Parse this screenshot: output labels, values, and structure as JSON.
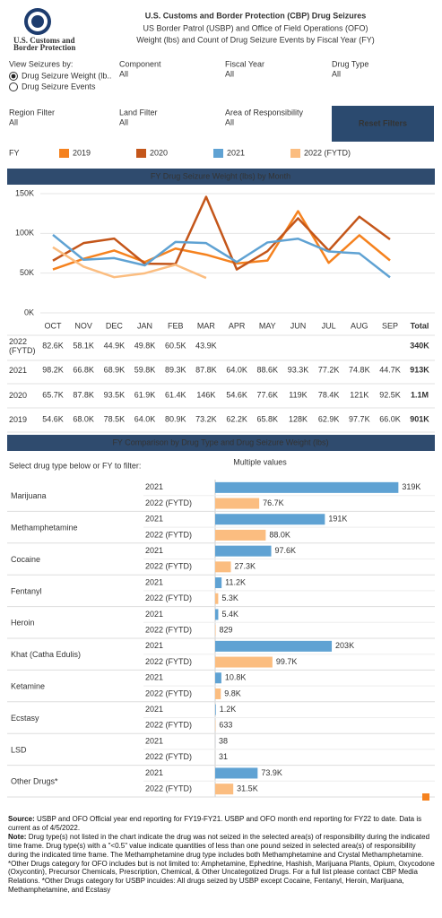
{
  "header": {
    "logo_lines": [
      "U.S. Customs and",
      "Border Protection"
    ],
    "title": "U.S. Customs and Border Protection (CBP) Drug Seizures",
    "subtitle1": "US Border Patrol (USBP) and Office of Field Operations (OFO)",
    "subtitle2": "Weight (lbs) and Count of Drug Seizure Events by Fiscal Year (FY)"
  },
  "filters": {
    "view_label": "View Seizures by:",
    "view_options": [
      "Drug Seizure Weight (lb..",
      "Drug Seizure Events"
    ],
    "fields": [
      {
        "label": "Component",
        "value": "All"
      },
      {
        "label": "Fiscal Year",
        "value": "All"
      },
      {
        "label": "Drug Type",
        "value": "All"
      },
      {
        "label": "Region Filter",
        "value": "All"
      },
      {
        "label": "Land Filter",
        "value": "All"
      },
      {
        "label": "Area of Responsibility",
        "value": "All"
      }
    ],
    "reset": "Reset Filters"
  },
  "legend_title": "FY",
  "chart_data": [
    {
      "type": "line",
      "title": "FY Drug Seizure Weight (lbs) by Month",
      "categories": [
        "OCT",
        "NOV",
        "DEC",
        "JAN",
        "FEB",
        "MAR",
        "APR",
        "MAY",
        "JUN",
        "JUL",
        "AUG",
        "SEP"
      ],
      "ylim": [
        0,
        150000
      ],
      "yticks": [
        {
          "value": 0,
          "label": "0K"
        },
        {
          "value": 50000,
          "label": "50K"
        },
        {
          "value": 100000,
          "label": "100K"
        },
        {
          "value": 150000,
          "label": "150K"
        }
      ],
      "grid": true,
      "total_header": "Total",
      "series": [
        {
          "name": "2019",
          "color": "#f5821f",
          "values": [
            54600,
            68000,
            78500,
            64000,
            80900,
            73200,
            62200,
            65800,
            128000,
            62900,
            97700,
            66000
          ],
          "value_labels": [
            "54.6K",
            "68.0K",
            "78.5K",
            "64.0K",
            "80.9K",
            "73.2K",
            "62.2K",
            "65.8K",
            "128K",
            "62.9K",
            "97.7K",
            "66.0K"
          ],
          "total": "901K"
        },
        {
          "name": "2020",
          "color": "#c4561a",
          "values": [
            65700,
            87800,
            93500,
            61900,
            61400,
            146000,
            54600,
            77600,
            119000,
            78400,
            121000,
            92500
          ],
          "value_labels": [
            "65.7K",
            "87.8K",
            "93.5K",
            "61.9K",
            "61.4K",
            "146K",
            "54.6K",
            "77.6K",
            "119K",
            "78.4K",
            "121K",
            "92.5K"
          ],
          "total": "1.1M"
        },
        {
          "name": "2021",
          "color": "#5fa2d3",
          "values": [
            98200,
            66800,
            68900,
            59800,
            89300,
            87800,
            64000,
            88600,
            93300,
            77200,
            74800,
            44700
          ],
          "value_labels": [
            "98.2K",
            "66.8K",
            "68.9K",
            "59.8K",
            "89.3K",
            "87.8K",
            "64.0K",
            "88.6K",
            "93.3K",
            "77.2K",
            "74.8K",
            "44.7K"
          ],
          "total": "913K"
        },
        {
          "name": "2022 (FYTD)",
          "color": "#fbbd80",
          "values": [
            82600,
            58100,
            44900,
            49800,
            60500,
            43900,
            null,
            null,
            null,
            null,
            null,
            null
          ],
          "value_labels": [
            "82.6K",
            "58.1K",
            "44.9K",
            "49.8K",
            "60.5K",
            "43.9K",
            null,
            null,
            null,
            null,
            null,
            null
          ],
          "total": "340K"
        }
      ]
    },
    {
      "type": "bar",
      "orientation": "horizontal",
      "title": "FY Comparison by Drug Type and Drug Seizure Weight (lbs)",
      "instruction": "Select drug type below or FY to filter:",
      "filter_value": "Multiple values",
      "categories": [
        "Marijuana",
        "Methamphetamine",
        "Cocaine",
        "Fentanyl",
        "Heroin",
        "Khat (Catha Edulis)",
        "Ketamine",
        "Ecstasy",
        "LSD",
        "Other Drugs*"
      ],
      "xlim": [
        0,
        320000
      ],
      "series": [
        {
          "name": "2021",
          "color": "#5fa2d3",
          "values": [
            319000,
            191000,
            97600,
            11200,
            5400,
            203000,
            10800,
            1200,
            38,
            73900
          ],
          "value_labels": [
            "319K",
            "191K",
            "97.6K",
            "11.2K",
            "5.4K",
            "203K",
            "10.8K",
            "1.2K",
            "38",
            "73.9K"
          ]
        },
        {
          "name": "2022 (FYTD)",
          "color": "#fbbd80",
          "values": [
            76700,
            88000,
            27300,
            5300,
            829,
            99700,
            9800,
            633,
            31,
            31500
          ],
          "value_labels": [
            "76.7K",
            "88.0K",
            "27.3K",
            "5.3K",
            "829",
            "99.7K",
            "9.8K",
            "633",
            "31",
            "31.5K"
          ]
        }
      ]
    }
  ],
  "footer": {
    "source_label": "Source:",
    "source": "USBP and OFO Official year end reporting for FY19-FY21. USBP and OFO month end reporting for FY22 to date. Data is current as of 4/5/2022.",
    "note_label": "Note:",
    "note": "Drug type(s) not listed in the chart indicate the drug was not seized in the selected area(s) of responsibility during the indicated time frame. Drug type(s) with a \"<0.5\" value indicate quantities of less than one pound seized in selected area(s) of responsibility during the indicated time frame. The Methamphetamine drug type includes both Methamphetamine and Crystal Methamphetamine. *Other Drugs category for OFO includes but is not limited to: Amphetamine, Ephedrine, Hashish, Marijuana Plants, Opium, Oxycodone (Oxycontin), Precursor Chemicals, Prescription, Chemical, & Other Uncategotized Drugs. For a full list please contact CBP Media Relations.  *Other Drugs category for USBP incuides: All drugs seized by USBP except Cocaine, Fentanyl, Heroin, Marijuana, Methamphetamine, and Ecstasy"
  }
}
